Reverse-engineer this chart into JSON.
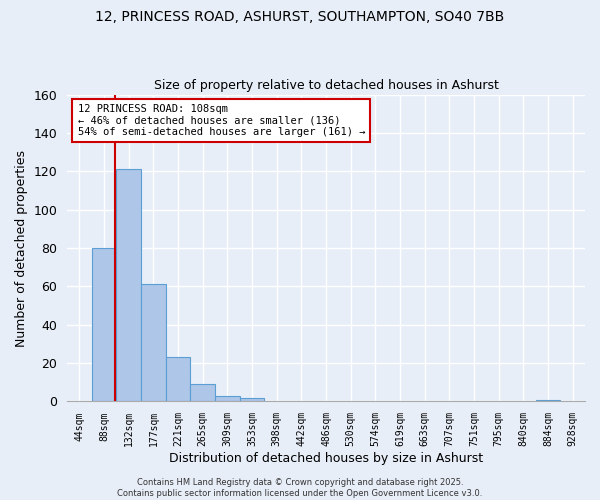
{
  "title1": "12, PRINCESS ROAD, ASHURST, SOUTHAMPTON, SO40 7BB",
  "title2": "Size of property relative to detached houses in Ashurst",
  "xlabel": "Distribution of detached houses by size in Ashurst",
  "ylabel": "Number of detached properties",
  "footnote": "Contains HM Land Registry data © Crown copyright and database right 2025.\nContains public sector information licensed under the Open Government Licence v3.0.",
  "bin_labels": [
    "44sqm",
    "88sqm",
    "132sqm",
    "177sqm",
    "221sqm",
    "265sqm",
    "309sqm",
    "353sqm",
    "398sqm",
    "442sqm",
    "486sqm",
    "530sqm",
    "574sqm",
    "619sqm",
    "663sqm",
    "707sqm",
    "751sqm",
    "795sqm",
    "840sqm",
    "884sqm",
    "928sqm"
  ],
  "bar_values": [
    0,
    80,
    121,
    61,
    23,
    9,
    3,
    2,
    0,
    0,
    0,
    0,
    0,
    0,
    0,
    0,
    0,
    0,
    0,
    1,
    0
  ],
  "bar_color": "#aec6e8",
  "bar_edge_color": "#5a9fd4",
  "background_color": "#e8eef8",
  "grid_color": "#ffffff",
  "red_line_x": 1.455,
  "annotation_text": "12 PRINCESS ROAD: 108sqm\n← 46% of detached houses are smaller (136)\n54% of semi-detached houses are larger (161) →",
  "annotation_box_color": "#ffffff",
  "annotation_box_edge_color": "#cc0000",
  "ylim": [
    0,
    160
  ],
  "yticks": [
    0,
    20,
    40,
    60,
    80,
    100,
    120,
    140,
    160
  ]
}
